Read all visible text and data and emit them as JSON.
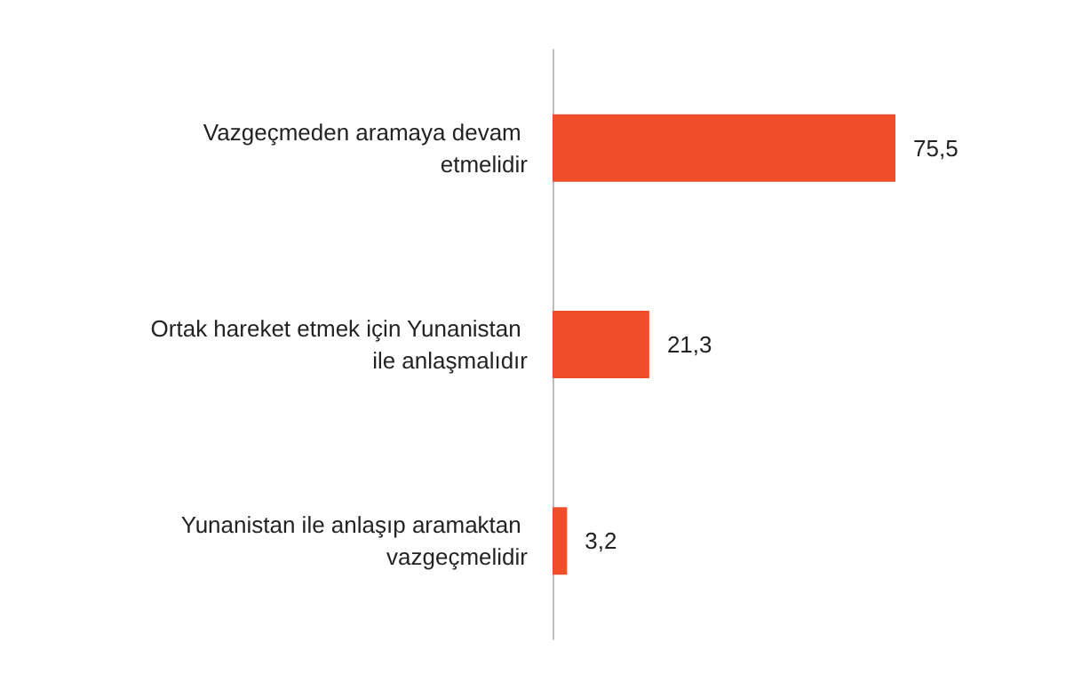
{
  "chart_data": {
    "type": "bar",
    "orientation": "horizontal",
    "categories": [
      "Vazgeçmeden aramaya devam etmelidir",
      "Ortak hareket etmek için Yunanistan ile anlaşmalıdır",
      "Yunanistan ile anlaşıp aramaktan vazgeçmelidir"
    ],
    "values": [
      75.5,
      21.3,
      3.2
    ],
    "color": "#f04e2a",
    "value_labels": [
      "75,5",
      "21,3",
      "3,2"
    ]
  }
}
